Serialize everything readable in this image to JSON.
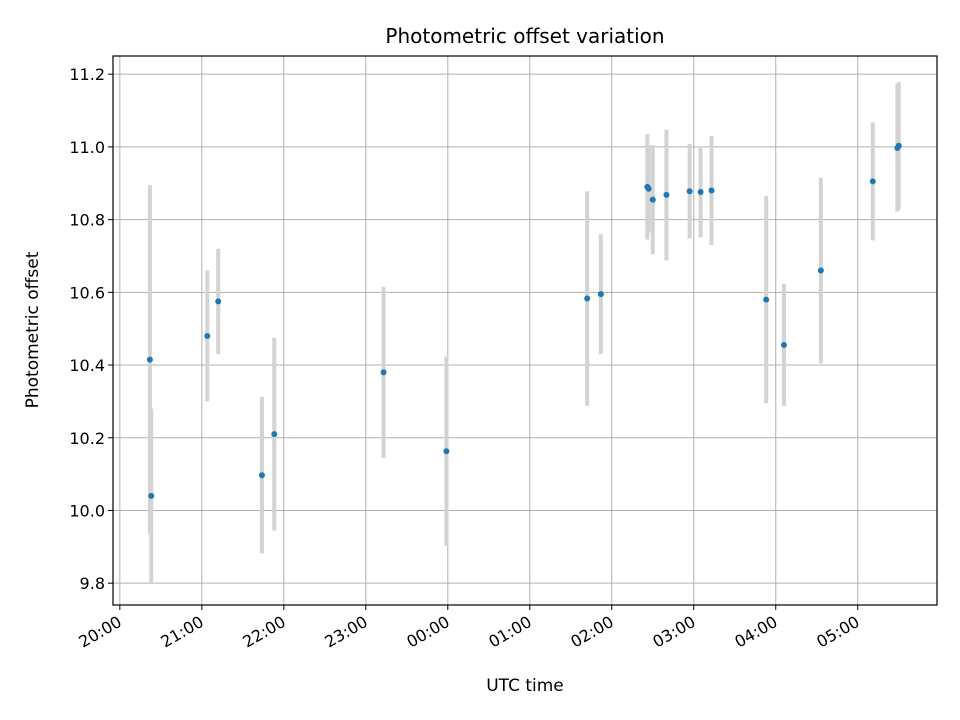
{
  "chart_data": {
    "type": "scatter",
    "title": "Photometric offset variation",
    "xlabel": "UTC time",
    "ylabel": "Photometric offset",
    "x_ticks": [
      "20:00",
      "21:00",
      "22:00",
      "23:00",
      "00:00",
      "01:00",
      "02:00",
      "03:00",
      "04:00",
      "05:00"
    ],
    "y_ticks": [
      "9.8",
      "10.0",
      "10.2",
      "10.4",
      "10.6",
      "10.8",
      "11.0",
      "11.2"
    ],
    "xlim": [
      "2000-01-01T19:55",
      "2000-01-02T05:58"
    ],
    "ylim": [
      9.74,
      11.25
    ],
    "grid": true,
    "colors": {
      "point": "#1f77b4",
      "errorbar": "#d3d3d3",
      "grid": "#b0b0b0"
    },
    "points": [
      {
        "t": "2000-01-01T20:22",
        "y": 10.415,
        "err": 0.48
      },
      {
        "t": "2000-01-01T20:23",
        "y": 10.04,
        "err": 0.24
      },
      {
        "t": "2000-01-01T21:04",
        "y": 10.48,
        "err": 0.18
      },
      {
        "t": "2000-01-01T21:12",
        "y": 10.575,
        "err": 0.145
      },
      {
        "t": "2000-01-01T21:44",
        "y": 10.097,
        "err": 0.215
      },
      {
        "t": "2000-01-01T21:53",
        "y": 10.21,
        "err": 0.265
      },
      {
        "t": "2000-01-01T23:13",
        "y": 10.38,
        "err": 0.235
      },
      {
        "t": "2000-01-01T23:59",
        "y": 10.163,
        "err": 0.26
      },
      {
        "t": "2000-01-02T01:42",
        "y": 10.583,
        "err": 0.295
      },
      {
        "t": "2000-01-02T01:52",
        "y": 10.595,
        "err": 0.165
      },
      {
        "t": "2000-01-02T02:26",
        "y": 10.89,
        "err": 0.145
      },
      {
        "t": "2000-01-02T02:27",
        "y": 10.885,
        "err": 0.12
      },
      {
        "t": "2000-01-02T02:30",
        "y": 10.855,
        "err": 0.15
      },
      {
        "t": "2000-01-02T02:40",
        "y": 10.868,
        "err": 0.18
      },
      {
        "t": "2000-01-02T02:57",
        "y": 10.878,
        "err": 0.13
      },
      {
        "t": "2000-01-02T03:05",
        "y": 10.876,
        "err": 0.125
      },
      {
        "t": "2000-01-02T03:13",
        "y": 10.88,
        "err": 0.15
      },
      {
        "t": "2000-01-02T03:53",
        "y": 10.58,
        "err": 0.285
      },
      {
        "t": "2000-01-02T04:06",
        "y": 10.455,
        "err": 0.168
      },
      {
        "t": "2000-01-02T04:33",
        "y": 10.66,
        "err": 0.255
      },
      {
        "t": "2000-01-02T05:11",
        "y": 10.905,
        "err": 0.162
      },
      {
        "t": "2000-01-02T05:29",
        "y": 10.997,
        "err": 0.175
      },
      {
        "t": "2000-01-02T05:30",
        "y": 11.003,
        "err": 0.175
      }
    ]
  }
}
